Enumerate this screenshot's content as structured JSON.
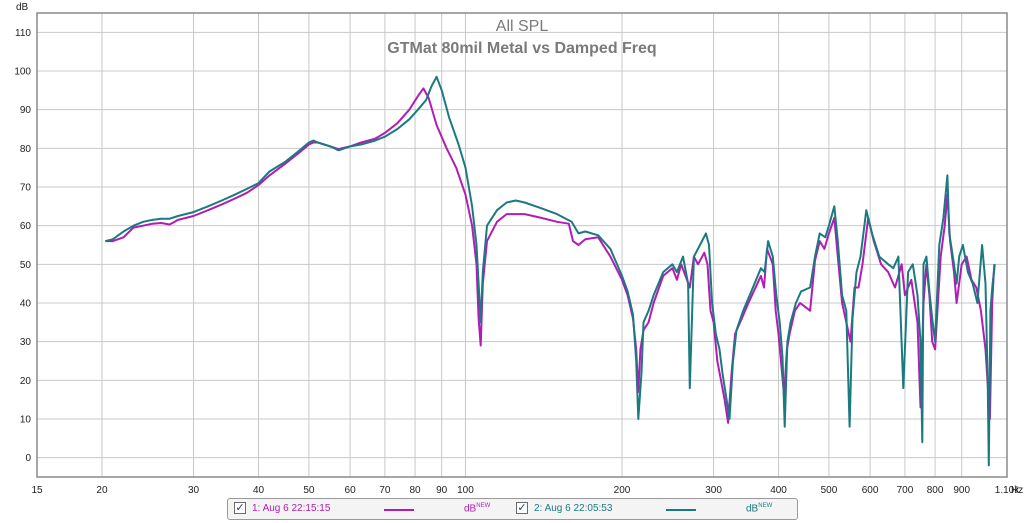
{
  "chart_data": {
    "type": "line",
    "title": "All SPL",
    "subtitle": "GTMat 80mil Metal vs Damped Freq",
    "ylabel": "dB",
    "xunit": "Hz",
    "xscale": "log",
    "xlim": [
      15,
      1100
    ],
    "ylim": [
      -5,
      115
    ],
    "grid": true,
    "yticks": [
      0,
      10,
      20,
      30,
      40,
      50,
      60,
      70,
      80,
      90,
      100,
      110
    ],
    "xticks": [
      {
        "v": 15,
        "label": "15"
      },
      {
        "v": 20,
        "label": "20"
      },
      {
        "v": 30,
        "label": "30"
      },
      {
        "v": 40,
        "label": "40"
      },
      {
        "v": 50,
        "label": "50"
      },
      {
        "v": 60,
        "label": "60"
      },
      {
        "v": 70,
        "label": "70"
      },
      {
        "v": 80,
        "label": "80"
      },
      {
        "v": 90,
        "label": "90"
      },
      {
        "v": 100,
        "label": "100"
      },
      {
        "v": 200,
        "label": "200"
      },
      {
        "v": 300,
        "label": "300"
      },
      {
        "v": 400,
        "label": "400"
      },
      {
        "v": 500,
        "label": "500"
      },
      {
        "v": 600,
        "label": "600"
      },
      {
        "v": 700,
        "label": "700"
      },
      {
        "v": 800,
        "label": "800"
      },
      {
        "v": 900,
        "label": "900"
      },
      {
        "v": 1100,
        "label": "1.10k"
      }
    ],
    "series": [
      {
        "name": "1: Aug 6 22:15:15",
        "color": "#b21cb4",
        "points": [
          [
            20.3,
            56
          ],
          [
            21,
            56
          ],
          [
            22,
            57
          ],
          [
            23,
            59.5
          ],
          [
            24,
            60
          ],
          [
            25,
            60.5
          ],
          [
            26,
            60.7
          ],
          [
            27,
            60.3
          ],
          [
            28,
            61.5
          ],
          [
            30,
            62.5
          ],
          [
            32,
            64
          ],
          [
            34,
            65.5
          ],
          [
            36,
            67
          ],
          [
            38,
            68.5
          ],
          [
            40,
            70.5
          ],
          [
            42,
            73
          ],
          [
            45,
            76
          ],
          [
            48,
            79
          ],
          [
            50,
            81
          ],
          [
            51,
            81.5
          ],
          [
            52,
            81.5
          ],
          [
            55,
            80.5
          ],
          [
            57,
            79.8
          ],
          [
            60,
            80.5
          ],
          [
            63,
            81.5
          ],
          [
            67,
            82.5
          ],
          [
            70,
            84
          ],
          [
            74,
            86.5
          ],
          [
            78,
            90
          ],
          [
            81,
            93.5
          ],
          [
            83,
            95.5
          ],
          [
            85,
            93
          ],
          [
            88,
            86
          ],
          [
            92,
            80
          ],
          [
            96,
            75
          ],
          [
            100,
            68
          ],
          [
            103,
            60
          ],
          [
            105,
            50
          ],
          [
            106,
            36
          ],
          [
            107,
            29
          ],
          [
            108,
            45
          ],
          [
            110,
            56
          ],
          [
            115,
            61
          ],
          [
            120,
            63
          ],
          [
            130,
            63
          ],
          [
            140,
            62
          ],
          [
            150,
            61
          ],
          [
            158,
            60.5
          ],
          [
            161,
            56
          ],
          [
            165,
            55
          ],
          [
            170,
            56.5
          ],
          [
            180,
            57
          ],
          [
            190,
            52
          ],
          [
            200,
            46
          ],
          [
            205,
            42
          ],
          [
            210,
            36
          ],
          [
            213,
            28
          ],
          [
            215,
            17
          ],
          [
            217,
            28
          ],
          [
            220,
            33
          ],
          [
            225,
            35
          ],
          [
            230,
            40
          ],
          [
            240,
            47
          ],
          [
            250,
            49
          ],
          [
            255,
            46
          ],
          [
            260,
            50
          ],
          [
            270,
            44
          ],
          [
            275,
            52
          ],
          [
            280,
            50
          ],
          [
            288,
            53
          ],
          [
            292,
            50
          ],
          [
            296,
            38
          ],
          [
            300,
            35
          ],
          [
            305,
            25
          ],
          [
            310,
            20
          ],
          [
            315,
            15
          ],
          [
            320,
            9
          ],
          [
            325,
            22
          ],
          [
            330,
            32
          ],
          [
            340,
            36
          ],
          [
            350,
            40
          ],
          [
            370,
            47
          ],
          [
            375,
            44
          ],
          [
            380,
            54
          ],
          [
            390,
            50
          ],
          [
            395,
            38
          ],
          [
            400,
            32
          ],
          [
            405,
            24
          ],
          [
            410,
            16
          ],
          [
            415,
            28
          ],
          [
            420,
            32
          ],
          [
            430,
            38
          ],
          [
            440,
            40
          ],
          [
            460,
            38
          ],
          [
            470,
            51
          ],
          [
            480,
            56
          ],
          [
            490,
            54
          ],
          [
            500,
            58
          ],
          [
            512,
            62
          ],
          [
            520,
            52
          ],
          [
            530,
            40
          ],
          [
            540,
            35
          ],
          [
            550,
            30
          ],
          [
            560,
            44
          ],
          [
            570,
            44
          ],
          [
            580,
            50
          ],
          [
            595,
            62
          ],
          [
            610,
            56
          ],
          [
            630,
            50
          ],
          [
            650,
            48
          ],
          [
            670,
            44
          ],
          [
            690,
            50
          ],
          [
            700,
            42
          ],
          [
            720,
            46
          ],
          [
            740,
            35
          ],
          [
            750,
            13
          ],
          [
            760,
            40
          ],
          [
            770,
            50
          ],
          [
            780,
            42
          ],
          [
            790,
            30
          ],
          [
            800,
            28
          ],
          [
            820,
            52
          ],
          [
            835,
            60
          ],
          [
            845,
            68
          ],
          [
            855,
            56
          ],
          [
            870,
            48
          ],
          [
            880,
            40
          ],
          [
            900,
            50
          ],
          [
            920,
            52
          ],
          [
            940,
            46
          ],
          [
            960,
            44
          ],
          [
            980,
            38
          ],
          [
            1000,
            28
          ],
          [
            1020,
            10
          ],
          [
            1030,
            40
          ],
          [
            1040,
            50
          ]
        ]
      },
      {
        "name": "2: Aug 6 22:05:53",
        "color": "#1a7a80",
        "points": [
          [
            20.3,
            56
          ],
          [
            21,
            56.5
          ],
          [
            22,
            58.5
          ],
          [
            23,
            60
          ],
          [
            24,
            61
          ],
          [
            25,
            61.5
          ],
          [
            26,
            61.8
          ],
          [
            27,
            61.8
          ],
          [
            28,
            62.5
          ],
          [
            30,
            63.5
          ],
          [
            32,
            65
          ],
          [
            34,
            66.5
          ],
          [
            36,
            68
          ],
          [
            38,
            69.5
          ],
          [
            40,
            71
          ],
          [
            42,
            74
          ],
          [
            45,
            76.5
          ],
          [
            48,
            79.5
          ],
          [
            50,
            81.5
          ],
          [
            51,
            82
          ],
          [
            52,
            81.5
          ],
          [
            55,
            80.5
          ],
          [
            57,
            79.5
          ],
          [
            60,
            80.5
          ],
          [
            63,
            81
          ],
          [
            67,
            82
          ],
          [
            70,
            83
          ],
          [
            74,
            85
          ],
          [
            78,
            87.5
          ],
          [
            81,
            90
          ],
          [
            84,
            92.5
          ],
          [
            86,
            96
          ],
          [
            88,
            98.5
          ],
          [
            90,
            95
          ],
          [
            93,
            88
          ],
          [
            97,
            81
          ],
          [
            100,
            75
          ],
          [
            103,
            65
          ],
          [
            105,
            55
          ],
          [
            106,
            45
          ],
          [
            107,
            35
          ],
          [
            108,
            48
          ],
          [
            110,
            60
          ],
          [
            115,
            64
          ],
          [
            120,
            66
          ],
          [
            125,
            66.5
          ],
          [
            130,
            66
          ],
          [
            140,
            64.5
          ],
          [
            150,
            63
          ],
          [
            160,
            61
          ],
          [
            165,
            58
          ],
          [
            170,
            58.5
          ],
          [
            180,
            57.5
          ],
          [
            190,
            54
          ],
          [
            200,
            47
          ],
          [
            205,
            43
          ],
          [
            210,
            37
          ],
          [
            213,
            25
          ],
          [
            215,
            10
          ],
          [
            218,
            22
          ],
          [
            220,
            35
          ],
          [
            225,
            38
          ],
          [
            230,
            42
          ],
          [
            240,
            48
          ],
          [
            250,
            50
          ],
          [
            255,
            48
          ],
          [
            262,
            52
          ],
          [
            268,
            45
          ],
          [
            270,
            18
          ],
          [
            275,
            52
          ],
          [
            285,
            56
          ],
          [
            290,
            58
          ],
          [
            294,
            55
          ],
          [
            298,
            40
          ],
          [
            303,
            32
          ],
          [
            308,
            28
          ],
          [
            312,
            22
          ],
          [
            317,
            16
          ],
          [
            322,
            10
          ],
          [
            327,
            25
          ],
          [
            332,
            33
          ],
          [
            342,
            38
          ],
          [
            352,
            42
          ],
          [
            370,
            49
          ],
          [
            376,
            48
          ],
          [
            382,
            56
          ],
          [
            390,
            52
          ],
          [
            396,
            42
          ],
          [
            402,
            35
          ],
          [
            407,
            26
          ],
          [
            411,
            8
          ],
          [
            416,
            30
          ],
          [
            422,
            35
          ],
          [
            432,
            40
          ],
          [
            442,
            43
          ],
          [
            460,
            44
          ],
          [
            470,
            52
          ],
          [
            480,
            58
          ],
          [
            492,
            57
          ],
          [
            500,
            60
          ],
          [
            512,
            65
          ],
          [
            520,
            56
          ],
          [
            530,
            42
          ],
          [
            540,
            38
          ],
          [
            548,
            8
          ],
          [
            555,
            36
          ],
          [
            565,
            48
          ],
          [
            575,
            52
          ],
          [
            590,
            64
          ],
          [
            605,
            58
          ],
          [
            625,
            52
          ],
          [
            650,
            50
          ],
          [
            665,
            49
          ],
          [
            680,
            52
          ],
          [
            695,
            18
          ],
          [
            710,
            48
          ],
          [
            725,
            50
          ],
          [
            740,
            42
          ],
          [
            750,
            30
          ],
          [
            756,
            4
          ],
          [
            760,
            50
          ],
          [
            770,
            52
          ],
          [
            780,
            43
          ],
          [
            790,
            36
          ],
          [
            800,
            30
          ],
          [
            815,
            55
          ],
          [
            830,
            62
          ],
          [
            845,
            73
          ],
          [
            852,
            58
          ],
          [
            870,
            50
          ],
          [
            880,
            45
          ],
          [
            890,
            52
          ],
          [
            905,
            55
          ],
          [
            925,
            48
          ],
          [
            945,
            45
          ],
          [
            965,
            40
          ],
          [
            985,
            55
          ],
          [
            1000,
            45
          ],
          [
            1010,
            20
          ],
          [
            1015,
            -2
          ],
          [
            1022,
            38
          ],
          [
            1032,
            45
          ],
          [
            1042,
            50
          ]
        ]
      }
    ],
    "legend": [
      {
        "label": "1: Aug 6 22:15:15",
        "unit": "dB",
        "unit_sup": "NEW",
        "color": "#b21cb4",
        "checked": true
      },
      {
        "label": "2: Aug 6 22:05:53",
        "unit": "dB",
        "unit_sup": "NEW",
        "color": "#1a7a80",
        "checked": true
      }
    ],
    "legend_position": "bottom",
    "colors": {
      "grid": "#c8c8c8",
      "frame": "#8a8a8a",
      "text": "#222222",
      "title": "#7a7a7a"
    }
  }
}
